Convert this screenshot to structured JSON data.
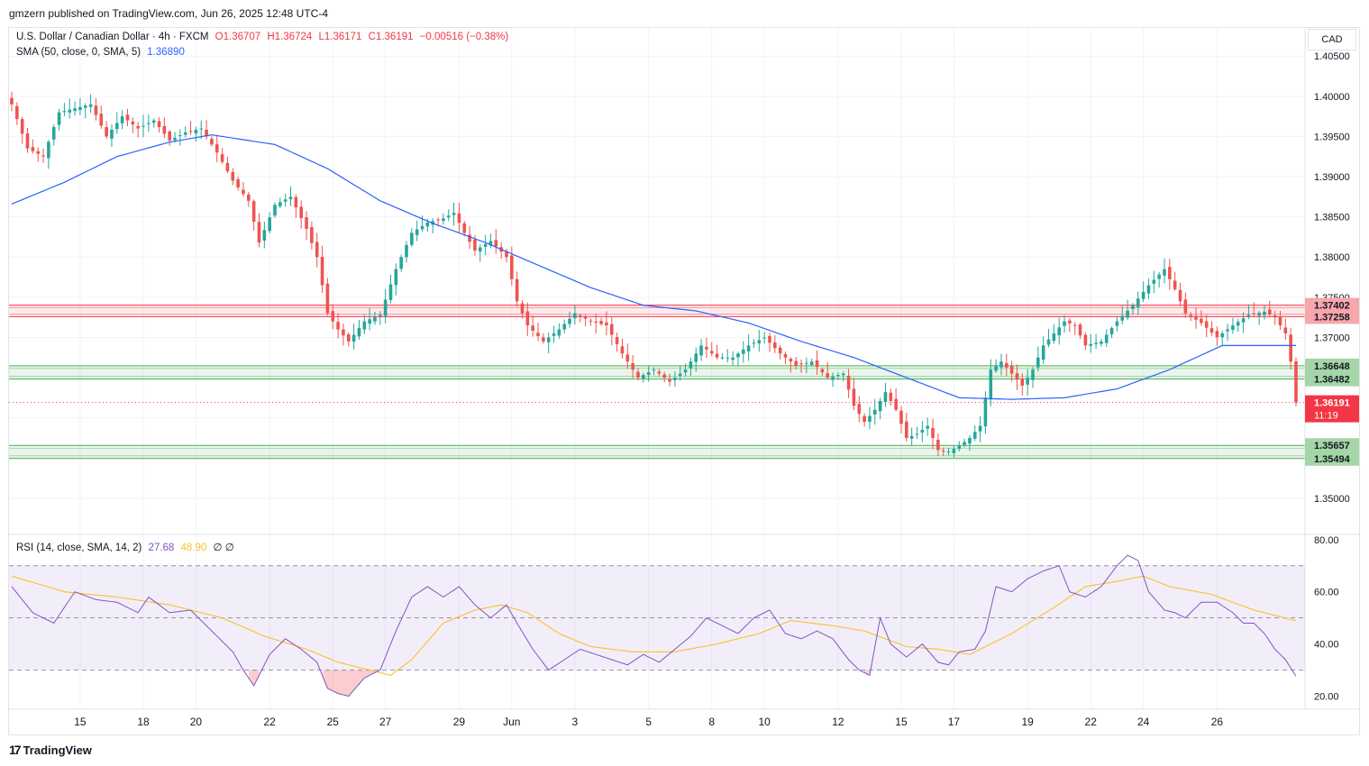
{
  "header": {
    "publisher_line": "gmzern published on TradingView.com, Jun 26, 2025 12:48 UTC-4"
  },
  "legend": {
    "symbol": "U.S. Dollar / Canadian Dollar · 4h · FXCM",
    "open": "O1.36707",
    "high": "H1.36724",
    "low": "L1.36171",
    "close": "C1.36191",
    "change": "−0.00516 (−0.38%)",
    "sma_label": "SMA (50, close, 0, SMA, 5)",
    "sma_value": "1.36890",
    "rsi_label": "RSI (14, close, SMA, 14, 2)",
    "rsi_value": "27.68",
    "rsi_ma_value": "48.90",
    "rsi_extra": "∅ ∅"
  },
  "currency": "CAD",
  "footer": {
    "brand": "TradingView",
    "logo_glyph": "17"
  },
  "colors": {
    "up": "#26a69a",
    "down": "#ef5350",
    "sma": "#2962ff",
    "rsi": "#7e57c2",
    "rsi_ma": "#fbc02d",
    "resistance": "#f23645",
    "support": "#4caf50"
  },
  "chart_data": [
    {
      "type": "candlestick",
      "title": "U.S. Dollar / Canadian Dollar · 4h · FXCM",
      "ylim": [
        1.3455,
        1.4085
      ],
      "y_ticks": [
        "1.40500",
        "1.40000",
        "1.39500",
        "1.39000",
        "1.38500",
        "1.38000",
        "1.37500",
        "1.37000",
        "1.36500",
        "1.36000",
        "1.35500",
        "1.35000"
      ],
      "x_ticks": [
        {
          "label": "15",
          "index": 13
        },
        {
          "label": "18",
          "index": 25
        },
        {
          "label": "20",
          "index": 35
        },
        {
          "label": "22",
          "index": 49
        },
        {
          "label": "25",
          "index": 61
        },
        {
          "label": "27",
          "index": 71
        },
        {
          "label": "29",
          "index": 85
        },
        {
          "label": "Jun",
          "index": 95
        },
        {
          "label": "3",
          "index": 107
        },
        {
          "label": "5",
          "index": 121
        },
        {
          "label": "8",
          "index": 133
        },
        {
          "label": "10",
          "index": 143
        },
        {
          "label": "12",
          "index": 157
        },
        {
          "label": "15",
          "index": 169
        },
        {
          "label": "17",
          "index": 179
        },
        {
          "label": "19",
          "index": 193
        },
        {
          "label": "22",
          "index": 205
        },
        {
          "label": "24",
          "index": 215
        },
        {
          "label": "26",
          "index": 229
        }
      ],
      "sma_anchors": [
        [
          0,
          1.3866
        ],
        [
          10,
          1.3893
        ],
        [
          20,
          1.3925
        ],
        [
          30,
          1.3943
        ],
        [
          38,
          1.3952
        ],
        [
          50,
          1.394
        ],
        [
          60,
          1.391
        ],
        [
          70,
          1.387
        ],
        [
          80,
          1.3842
        ],
        [
          90,
          1.3818
        ],
        [
          100,
          1.379
        ],
        [
          110,
          1.3762
        ],
        [
          120,
          1.374
        ],
        [
          130,
          1.3733
        ],
        [
          140,
          1.3718
        ],
        [
          150,
          1.3695
        ],
        [
          160,
          1.3675
        ],
        [
          170,
          1.365
        ],
        [
          180,
          1.3625
        ],
        [
          190,
          1.3623
        ],
        [
          200,
          1.3625
        ],
        [
          210,
          1.3636
        ],
        [
          220,
          1.366
        ],
        [
          230,
          1.369
        ]
      ],
      "candle_anchors": [
        [
          0,
          1.399
        ],
        [
          3,
          1.3935
        ],
        [
          6,
          1.3925
        ],
        [
          9,
          1.398
        ],
        [
          12,
          1.3985
        ],
        [
          15,
          1.399
        ],
        [
          18,
          1.395
        ],
        [
          21,
          1.3975
        ],
        [
          24,
          1.396
        ],
        [
          27,
          1.397
        ],
        [
          30,
          1.3945
        ],
        [
          33,
          1.3955
        ],
        [
          36,
          1.396
        ],
        [
          39,
          1.393
        ],
        [
          42,
          1.3895
        ],
        [
          45,
          1.387
        ],
        [
          47,
          1.3818
        ],
        [
          50,
          1.3865
        ],
        [
          53,
          1.3875
        ],
        [
          56,
          1.3835
        ],
        [
          58,
          1.38
        ],
        [
          60,
          1.373
        ],
        [
          62,
          1.371
        ],
        [
          64,
          1.3695
        ],
        [
          67,
          1.372
        ],
        [
          70,
          1.3728
        ],
        [
          73,
          1.3785
        ],
        [
          76,
          1.383
        ],
        [
          79,
          1.3843
        ],
        [
          82,
          1.3848
        ],
        [
          84,
          1.3855
        ],
        [
          86,
          1.383
        ],
        [
          88,
          1.3808
        ],
        [
          91,
          1.382
        ],
        [
          94,
          1.38
        ],
        [
          96,
          1.3745
        ],
        [
          98,
          1.3715
        ],
        [
          101,
          1.3695
        ],
        [
          104,
          1.371
        ],
        [
          107,
          1.373
        ],
        [
          110,
          1.372
        ],
        [
          113,
          1.3715
        ],
        [
          116,
          1.368
        ],
        [
          119,
          1.365
        ],
        [
          122,
          1.366
        ],
        [
          125,
          1.3645
        ],
        [
          128,
          1.366
        ],
        [
          131,
          1.369
        ],
        [
          134,
          1.3675
        ],
        [
          137,
          1.3675
        ],
        [
          140,
          1.369
        ],
        [
          143,
          1.37
        ],
        [
          146,
          1.368
        ],
        [
          149,
          1.3665
        ],
        [
          152,
          1.367
        ],
        [
          155,
          1.365
        ],
        [
          158,
          1.3655
        ],
        [
          160,
          1.3615
        ],
        [
          162,
          1.3595
        ],
        [
          164,
          1.361
        ],
        [
          166,
          1.3632
        ],
        [
          168,
          1.361
        ],
        [
          170,
          1.3575
        ],
        [
          172,
          1.358
        ],
        [
          174,
          1.359
        ],
        [
          176,
          1.356
        ],
        [
          178,
          1.3558
        ],
        [
          180,
          1.3565
        ],
        [
          182,
          1.3575
        ],
        [
          184,
          1.359
        ],
        [
          186,
          1.366
        ],
        [
          188,
          1.367
        ],
        [
          190,
          1.3655
        ],
        [
          192,
          1.364
        ],
        [
          194,
          1.366
        ],
        [
          196,
          1.369
        ],
        [
          198,
          1.3705
        ],
        [
          200,
          1.372
        ],
        [
          202,
          1.3715
        ],
        [
          204,
          1.369
        ],
        [
          207,
          1.3695
        ],
        [
          210,
          1.372
        ],
        [
          213,
          1.374
        ],
        [
          216,
          1.3765
        ],
        [
          219,
          1.3785
        ],
        [
          221,
          1.376
        ],
        [
          223,
          1.373
        ],
        [
          226,
          1.3718
        ],
        [
          229,
          1.37
        ],
        [
          232,
          1.3715
        ],
        [
          235,
          1.3728
        ],
        [
          238,
          1.3732
        ],
        [
          240,
          1.3725
        ],
        [
          242,
          1.3705
        ],
        [
          243,
          1.367
        ],
        [
          244,
          1.36191
        ]
      ],
      "lines": [
        {
          "label": "1.37402",
          "value": 1.37402,
          "color": "#f23645"
        },
        {
          "label": "1.37258",
          "value": 1.37258,
          "color": "#f23645"
        },
        {
          "label": "1.36648",
          "value": 1.36648,
          "color": "#4caf50"
        },
        {
          "label": "1.36482",
          "value": 1.36482,
          "color": "#4caf50"
        },
        {
          "label": "1.35657",
          "value": 1.35657,
          "color": "#4caf50"
        },
        {
          "label": "1.35494",
          "value": 1.35494,
          "color": "#4caf50"
        }
      ],
      "last_price": {
        "label": "1.36191",
        "value": 1.36191,
        "countdown": "11:19"
      }
    },
    {
      "type": "line",
      "title": "RSI (14, close, SMA, 14, 2)",
      "ylim": [
        15,
        82
      ],
      "y_ticks": [
        "80.00",
        "60.00",
        "40.00",
        "20.00"
      ],
      "levels": [
        70,
        50,
        30
      ],
      "rsi_anchors": [
        [
          0,
          62
        ],
        [
          4,
          52
        ],
        [
          8,
          48
        ],
        [
          12,
          60
        ],
        [
          16,
          57
        ],
        [
          20,
          56
        ],
        [
          24,
          52
        ],
        [
          26,
          58
        ],
        [
          30,
          52
        ],
        [
          34,
          53
        ],
        [
          38,
          45
        ],
        [
          42,
          37
        ],
        [
          44,
          30
        ],
        [
          46,
          24
        ],
        [
          49,
          36
        ],
        [
          52,
          42
        ],
        [
          55,
          38
        ],
        [
          58,
          33
        ],
        [
          60,
          23
        ],
        [
          62,
          21
        ],
        [
          64,
          20
        ],
        [
          67,
          27
        ],
        [
          70,
          30
        ],
        [
          73,
          45
        ],
        [
          76,
          58
        ],
        [
          79,
          62
        ],
        [
          82,
          58
        ],
        [
          85,
          62
        ],
        [
          88,
          55
        ],
        [
          91,
          50
        ],
        [
          94,
          55
        ],
        [
          96,
          48
        ],
        [
          99,
          38
        ],
        [
          102,
          30
        ],
        [
          105,
          34
        ],
        [
          108,
          38
        ],
        [
          111,
          36
        ],
        [
          114,
          34
        ],
        [
          117,
          32
        ],
        [
          120,
          36
        ],
        [
          123,
          33
        ],
        [
          126,
          38
        ],
        [
          129,
          43
        ],
        [
          132,
          50
        ],
        [
          135,
          47
        ],
        [
          138,
          44
        ],
        [
          141,
          50
        ],
        [
          144,
          53
        ],
        [
          147,
          44
        ],
        [
          150,
          42
        ],
        [
          153,
          45
        ],
        [
          156,
          42
        ],
        [
          159,
          34
        ],
        [
          161,
          30
        ],
        [
          163,
          28
        ],
        [
          165,
          50
        ],
        [
          167,
          40
        ],
        [
          170,
          35
        ],
        [
          173,
          40
        ],
        [
          176,
          33
        ],
        [
          178,
          32
        ],
        [
          180,
          37
        ],
        [
          183,
          38
        ],
        [
          185,
          45
        ],
        [
          187,
          62
        ],
        [
          190,
          60
        ],
        [
          193,
          65
        ],
        [
          196,
          68
        ],
        [
          199,
          70
        ],
        [
          201,
          60
        ],
        [
          204,
          58
        ],
        [
          207,
          62
        ],
        [
          210,
          70
        ],
        [
          212,
          74
        ],
        [
          214,
          72
        ],
        [
          216,
          60
        ],
        [
          219,
          53
        ],
        [
          221,
          52
        ],
        [
          223,
          50
        ],
        [
          226,
          56
        ],
        [
          229,
          56
        ],
        [
          232,
          52
        ],
        [
          234,
          48
        ],
        [
          236,
          48
        ],
        [
          238,
          44
        ],
        [
          240,
          38
        ],
        [
          242,
          34
        ],
        [
          244,
          27.68
        ]
      ],
      "rsi_ma_anchors": [
        [
          0,
          66
        ],
        [
          10,
          60
        ],
        [
          20,
          58
        ],
        [
          30,
          55
        ],
        [
          40,
          50
        ],
        [
          48,
          43
        ],
        [
          56,
          38
        ],
        [
          62,
          33
        ],
        [
          68,
          30
        ],
        [
          72,
          28
        ],
        [
          76,
          34
        ],
        [
          82,
          48
        ],
        [
          88,
          53
        ],
        [
          93,
          55
        ],
        [
          98,
          52
        ],
        [
          104,
          44
        ],
        [
          110,
          39
        ],
        [
          118,
          37
        ],
        [
          126,
          37
        ],
        [
          134,
          40
        ],
        [
          142,
          44
        ],
        [
          148,
          49
        ],
        [
          156,
          47
        ],
        [
          162,
          45
        ],
        [
          170,
          39
        ],
        [
          176,
          38
        ],
        [
          182,
          36
        ],
        [
          190,
          44
        ],
        [
          198,
          54
        ],
        [
          204,
          62
        ],
        [
          210,
          64
        ],
        [
          215,
          66
        ],
        [
          220,
          62
        ],
        [
          228,
          59
        ],
        [
          236,
          53
        ],
        [
          244,
          48.9
        ]
      ],
      "ma_last": {
        "label": "48.90",
        "value": 48.9
      },
      "rsi_last": {
        "label": "27.68",
        "value": 27.68
      }
    }
  ]
}
